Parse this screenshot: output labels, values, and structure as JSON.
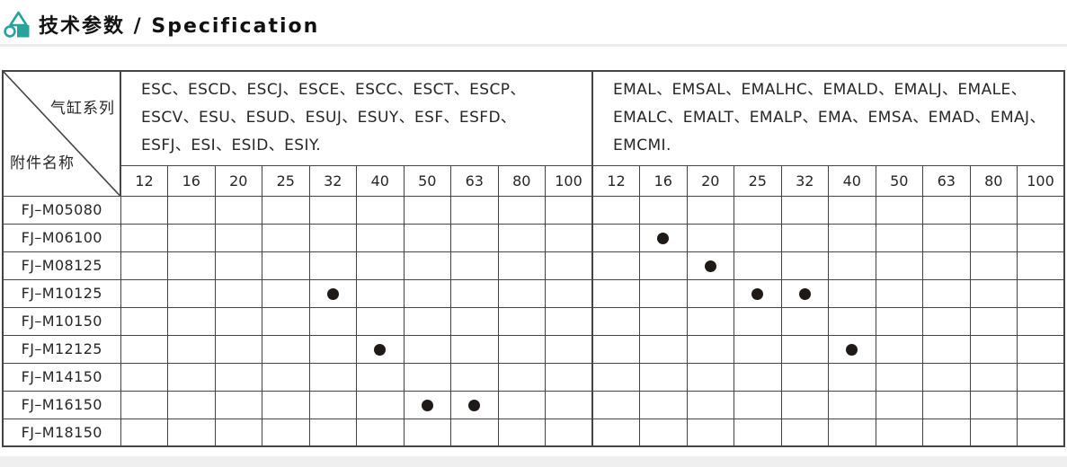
{
  "page": {
    "title": "技术参数 / Specification"
  },
  "table": {
    "corner": {
      "top_right_label": "气缸系列",
      "bottom_left_label": "附件名称"
    },
    "groups": [
      {
        "series_label": "ESC、ESCD、ESCJ、ESCE、ESCC、ESCT、ESCP、ESCV、ESU、ESUD、ESUJ、ESUY、ESF、ESFD、ESFJ、ESI、ESID、ESIY.",
        "series_lines": [
          "ESC、ESCD、ESCJ、ESCE、ESCC、ESCT、ESCP、",
          "ESCV、ESU、ESUD、ESUJ、ESUY、ESF、ESFD、",
          "ESFJ、ESI、ESID、ESIY."
        ],
        "sizes": [
          "12",
          "16",
          "20",
          "25",
          "32",
          "40",
          "50",
          "63",
          "80",
          "100"
        ]
      },
      {
        "series_label": "EMAL、EMSAL、EMALHC、EMALD、EMALJ、EMALE、EMALC、EMALT、EMALP、EMA、EMSA、EMAD、EMAJ、EMCMI.",
        "series_lines": [
          "EMAL、EMSAL、EMALHC、EMALD、EMALJ、EMALE、",
          "EMALC、EMALT、EMALP、EMA、EMSA、EMAD、EMAJ、",
          "EMCMI."
        ],
        "sizes": [
          "12",
          "16",
          "20",
          "25",
          "32",
          "40",
          "50",
          "63",
          "80",
          "100"
        ]
      }
    ],
    "rows": [
      {
        "label": "FJ–M05080",
        "dots": [
          [],
          []
        ]
      },
      {
        "label": "FJ–M06100",
        "dots": [
          [],
          [
            "16"
          ]
        ]
      },
      {
        "label": "FJ–M08125",
        "dots": [
          [],
          [
            "20"
          ]
        ]
      },
      {
        "label": "FJ–M10125",
        "dots": [
          [
            "32"
          ],
          [
            "25",
            "32"
          ]
        ]
      },
      {
        "label": "FJ–M10150",
        "dots": [
          [],
          []
        ]
      },
      {
        "label": "FJ–M12125",
        "dots": [
          [
            "40"
          ],
          [
            "40"
          ]
        ]
      },
      {
        "label": "FJ–M14150",
        "dots": [
          [],
          []
        ]
      },
      {
        "label": "FJ–M16150",
        "dots": [
          [
            "50",
            "63"
          ],
          []
        ]
      },
      {
        "label": "FJ–M18150",
        "dots": [
          [],
          []
        ]
      }
    ]
  },
  "colors": {
    "accent_teal": "#27a39c",
    "table_border": "#454545",
    "dot": "#1f1a17",
    "bottom_band": "#f0efef"
  }
}
